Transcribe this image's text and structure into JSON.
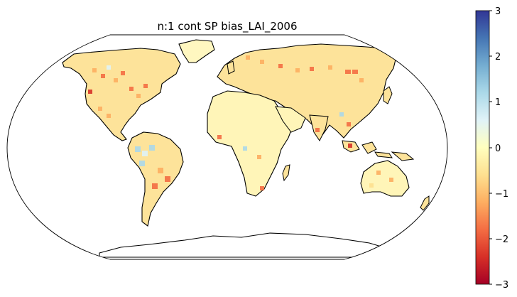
{
  "map": {
    "title": "n:1 cont SP  bias_LAI_2006",
    "projection": "robinson",
    "colormap": "RdYlBu",
    "colormap_stops": [
      "#a50026",
      "#d73027",
      "#f46d43",
      "#fdae61",
      "#fee090",
      "#ffffbf",
      "#e0f3f8",
      "#abd9e9",
      "#74add1",
      "#4575b4",
      "#313695"
    ]
  },
  "colorbar": {
    "range": [
      -3,
      3
    ],
    "tick_labels": [
      "3",
      "2",
      "1",
      "0",
      "−1",
      "−2",
      "−3"
    ]
  }
}
